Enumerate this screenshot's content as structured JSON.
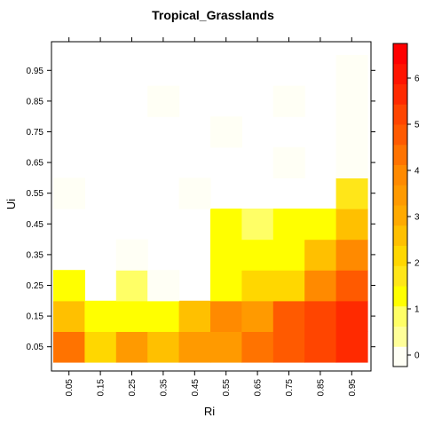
{
  "chart_data": {
    "type": "heatmap",
    "title": "Tropical_Grasslands",
    "xlabel": "Ri",
    "ylabel": "Ui",
    "x_categories": [
      "0.05",
      "0.15",
      "0.25",
      "0.35",
      "0.45",
      "0.55",
      "0.65",
      "0.75",
      "0.85",
      "0.95"
    ],
    "y_categories": [
      "0.05",
      "0.15",
      "0.25",
      "0.35",
      "0.45",
      "0.55",
      "0.65",
      "0.75",
      "0.85",
      "0.95"
    ],
    "values": [
      [
        4.3,
        2.3,
        3.3,
        2.8,
        3.3,
        3.3,
        4.3,
        4.8,
        5.3,
        5.8
      ],
      [
        2.8,
        1.3,
        1.3,
        1.3,
        2.8,
        3.8,
        3.3,
        4.8,
        5.3,
        5.8
      ],
      [
        1.3,
        null,
        0.8,
        0.1,
        null,
        1.3,
        2.3,
        2.3,
        3.8,
        4.8
      ],
      [
        null,
        null,
        0.1,
        null,
        null,
        1.3,
        1.3,
        1.3,
        2.8,
        3.8
      ],
      [
        null,
        null,
        null,
        null,
        null,
        1.3,
        0.8,
        1.3,
        1.3,
        2.8
      ],
      [
        0.1,
        null,
        null,
        null,
        0.1,
        null,
        null,
        null,
        null,
        1.8
      ],
      [
        null,
        null,
        null,
        null,
        null,
        null,
        null,
        0.1,
        null,
        0.1
      ],
      [
        null,
        null,
        null,
        null,
        null,
        0.1,
        null,
        null,
        null,
        0.1
      ],
      [
        null,
        null,
        null,
        0.1,
        null,
        null,
        null,
        0.1,
        null,
        0.1
      ],
      [
        null,
        null,
        null,
        null,
        null,
        null,
        null,
        null,
        null,
        0.1
      ]
    ],
    "zlim": [
      -0.25,
      6.75
    ],
    "colorbar_ticks": [
      0,
      1,
      2,
      3,
      4,
      5,
      6
    ],
    "colorbar_colors": [
      "#FFFFF5",
      "#FFFF99",
      "#FFFF66",
      "#FFFF00",
      "#FFE619",
      "#FFD700",
      "#FFC000",
      "#FFAA00",
      "#FF9A00",
      "#FF8A00",
      "#FF7300",
      "#FF5A00",
      "#FF4500",
      "#FF2A00",
      "#FF1400",
      "#FF0000"
    ],
    "grid": false,
    "legend_position": "right"
  }
}
